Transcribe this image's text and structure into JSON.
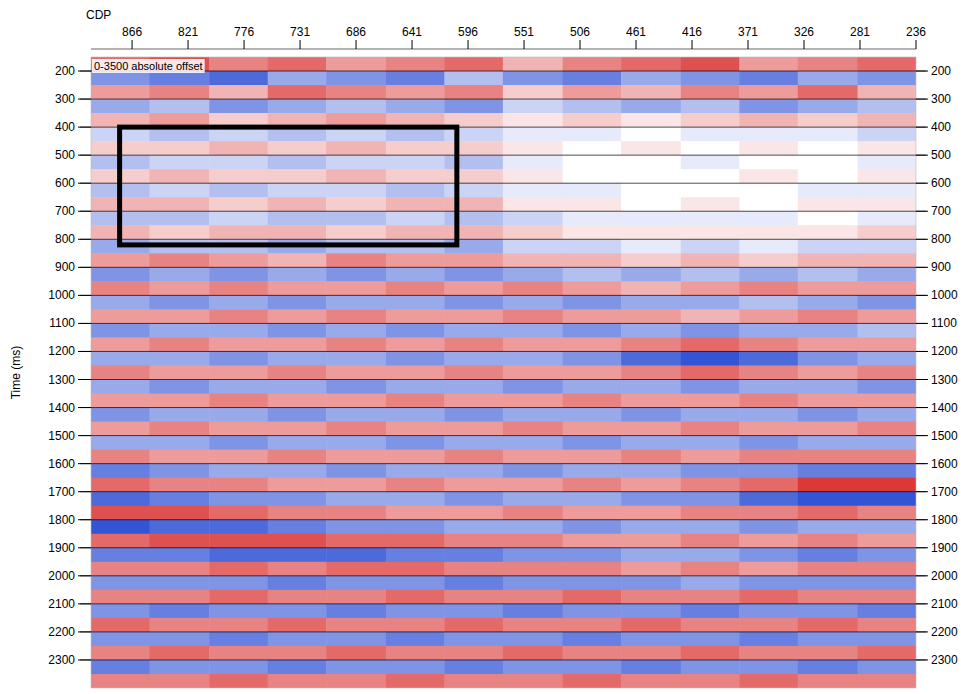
{
  "chart_data": {
    "type": "heatmap",
    "xlabel": "CDP",
    "ylabel": "Time (ms)",
    "annotations": [
      "0-3500 absolute offset"
    ],
    "xlim": [
      899,
      236
    ],
    "ylim": [
      150,
      2400
    ],
    "xticks": [
      866,
      821,
      776,
      731,
      686,
      641,
      596,
      551,
      506,
      461,
      416,
      371,
      326,
      281,
      236
    ],
    "yticks": [
      200,
      300,
      400,
      500,
      600,
      700,
      800,
      900,
      1000,
      1100,
      1200,
      1300,
      1400,
      1500,
      1600,
      1700,
      1800,
      1900,
      2000,
      2100,
      2200,
      2300
    ],
    "grid": true,
    "box": {
      "x": [
        876,
        605
      ],
      "y": [
        400,
        820
      ]
    },
    "zlim": [
      -9,
      9
    ],
    "xbins": [
      899,
      852,
      804,
      757,
      710,
      662,
      615,
      568,
      520,
      473,
      425,
      378,
      331,
      283,
      236
    ],
    "ybins": [
      150,
      200,
      250,
      300,
      350,
      400,
      450,
      500,
      550,
      600,
      650,
      700,
      750,
      800,
      850,
      900,
      950,
      1000,
      1050,
      1100,
      1150,
      1200,
      1250,
      1300,
      1350,
      1400,
      1450,
      1500,
      1550,
      1600,
      1650,
      1700,
      1750,
      1800,
      1850,
      1900,
      1950,
      2000,
      2050,
      2100,
      2150,
      2200,
      2250,
      2300,
      2350,
      2400
    ],
    "cells": [
      [
        6,
        7,
        5,
        6,
        4,
        5,
        6,
        3,
        5,
        6,
        7,
        4,
        5,
        6
      ],
      [
        -5,
        -6,
        -7,
        -4,
        -5,
        -6,
        -3,
        -5,
        -6,
        -4,
        -5,
        -6,
        -4,
        -5
      ],
      [
        4,
        5,
        3,
        6,
        5,
        4,
        5,
        2,
        4,
        3,
        5,
        4,
        6,
        3
      ],
      [
        -4,
        -3,
        -5,
        -4,
        -3,
        -4,
        -5,
        -2,
        -3,
        -4,
        -3,
        -5,
        -4,
        -3
      ],
      [
        3,
        4,
        2,
        3,
        4,
        3,
        2,
        1,
        2,
        1,
        2,
        3,
        2,
        3
      ],
      [
        -2,
        -3,
        -2,
        -3,
        -2,
        -3,
        -2,
        -1,
        -1,
        0,
        -1,
        -1,
        -1,
        -2
      ],
      [
        2,
        2,
        3,
        2,
        3,
        2,
        2,
        1,
        0,
        1,
        0,
        1,
        0,
        1
      ],
      [
        -3,
        -2,
        -2,
        -3,
        -2,
        -2,
        -3,
        -1,
        0,
        0,
        -1,
        0,
        0,
        -1
      ],
      [
        2,
        3,
        2,
        2,
        3,
        2,
        2,
        1,
        0,
        0,
        0,
        1,
        0,
        1
      ],
      [
        -3,
        -2,
        -3,
        -2,
        -2,
        -3,
        -2,
        -1,
        -1,
        0,
        0,
        0,
        -1,
        -1
      ],
      [
        3,
        3,
        2,
        3,
        2,
        3,
        3,
        1,
        1,
        0,
        1,
        0,
        1,
        1
      ],
      [
        -3,
        -3,
        -2,
        -3,
        -3,
        -2,
        -3,
        -2,
        -1,
        -1,
        -1,
        -1,
        0,
        -1
      ],
      [
        3,
        2,
        3,
        3,
        2,
        3,
        3,
        2,
        1,
        1,
        1,
        1,
        1,
        2
      ],
      [
        -4,
        -3,
        -3,
        -4,
        -3,
        -3,
        -4,
        -2,
        -2,
        -1,
        -2,
        -1,
        -2,
        -2
      ],
      [
        4,
        5,
        4,
        3,
        5,
        4,
        4,
        3,
        3,
        2,
        3,
        2,
        3,
        3
      ],
      [
        -5,
        -4,
        -5,
        -4,
        -5,
        -4,
        -5,
        -4,
        -3,
        -4,
        -3,
        -4,
        -3,
        -4
      ],
      [
        5,
        4,
        5,
        4,
        4,
        5,
        4,
        5,
        4,
        3,
        4,
        5,
        4,
        4
      ],
      [
        -4,
        -5,
        -4,
        -5,
        -4,
        -4,
        -5,
        -4,
        -5,
        -4,
        -4,
        -3,
        -4,
        -5
      ],
      [
        4,
        4,
        5,
        4,
        5,
        4,
        4,
        5,
        4,
        4,
        3,
        4,
        5,
        4
      ],
      [
        -5,
        -4,
        -4,
        -5,
        -4,
        -5,
        -4,
        -4,
        -5,
        -4,
        -5,
        -4,
        -4,
        -3
      ],
      [
        4,
        5,
        4,
        4,
        5,
        4,
        5,
        4,
        4,
        5,
        6,
        5,
        4,
        4
      ],
      [
        -4,
        -4,
        -5,
        -4,
        -4,
        -5,
        -4,
        -4,
        -5,
        -7,
        -8,
        -7,
        -5,
        -4
      ],
      [
        5,
        4,
        4,
        5,
        4,
        4,
        5,
        4,
        4,
        5,
        6,
        5,
        4,
        5
      ],
      [
        -4,
        -5,
        -4,
        -4,
        -5,
        -4,
        -4,
        -5,
        -4,
        -4,
        -5,
        -4,
        -4,
        -5
      ],
      [
        4,
        4,
        5,
        4,
        4,
        5,
        4,
        4,
        5,
        4,
        4,
        5,
        4,
        4
      ],
      [
        -5,
        -4,
        -4,
        -5,
        -4,
        -4,
        -5,
        -4,
        -4,
        -5,
        -4,
        -4,
        -5,
        -4
      ],
      [
        4,
        5,
        4,
        4,
        5,
        4,
        4,
        5,
        4,
        4,
        5,
        4,
        4,
        5
      ],
      [
        -4,
        -4,
        -5,
        -4,
        -4,
        -5,
        -4,
        -4,
        -5,
        -4,
        -4,
        -5,
        -4,
        -4
      ],
      [
        5,
        4,
        4,
        5,
        4,
        4,
        5,
        4,
        4,
        5,
        4,
        5,
        5,
        5
      ],
      [
        -6,
        -5,
        -4,
        -4,
        -5,
        -4,
        -4,
        -5,
        -4,
        -4,
        -5,
        -5,
        -6,
        -6
      ],
      [
        6,
        5,
        5,
        4,
        4,
        5,
        4,
        4,
        5,
        4,
        5,
        6,
        8,
        8
      ],
      [
        -7,
        -6,
        -5,
        -5,
        -4,
        -4,
        -5,
        -4,
        -4,
        -5,
        -5,
        -7,
        -8,
        -8
      ],
      [
        7,
        7,
        6,
        5,
        5,
        4,
        4,
        5,
        4,
        4,
        5,
        5,
        6,
        5
      ],
      [
        -8,
        -7,
        -7,
        -6,
        -5,
        -5,
        -4,
        -4,
        -5,
        -4,
        -4,
        -5,
        -4,
        -4
      ],
      [
        6,
        7,
        7,
        7,
        6,
        6,
        5,
        5,
        4,
        4,
        5,
        4,
        5,
        4
      ],
      [
        -6,
        -6,
        -7,
        -7,
        -7,
        -6,
        -6,
        -5,
        -5,
        -4,
        -4,
        -5,
        -6,
        -5
      ],
      [
        5,
        5,
        6,
        5,
        6,
        6,
        5,
        5,
        5,
        4,
        5,
        4,
        5,
        5
      ],
      [
        -5,
        -5,
        -5,
        -6,
        -5,
        -5,
        -6,
        -5,
        -5,
        -5,
        -4,
        -5,
        -5,
        -5
      ],
      [
        5,
        5,
        6,
        5,
        5,
        6,
        5,
        5,
        6,
        5,
        5,
        6,
        5,
        5
      ],
      [
        -5,
        -6,
        -5,
        -5,
        -6,
        -5,
        -5,
        -6,
        -5,
        -5,
        -6,
        -5,
        -5,
        -6
      ],
      [
        6,
        5,
        5,
        6,
        5,
        5,
        6,
        5,
        5,
        6,
        5,
        5,
        6,
        5
      ],
      [
        -5,
        -5,
        -6,
        -5,
        -5,
        -6,
        -5,
        -5,
        -6,
        -5,
        -5,
        -6,
        -5,
        -5
      ],
      [
        5,
        6,
        5,
        5,
        6,
        5,
        5,
        6,
        5,
        5,
        6,
        5,
        5,
        6
      ],
      [
        -6,
        -5,
        -5,
        -6,
        -5,
        -5,
        -6,
        -5,
        -5,
        -6,
        -5,
        -5,
        -6,
        -5
      ],
      [
        5,
        5,
        6,
        5,
        5,
        6,
        5,
        5,
        6,
        5,
        5,
        6,
        5,
        5
      ]
    ]
  }
}
